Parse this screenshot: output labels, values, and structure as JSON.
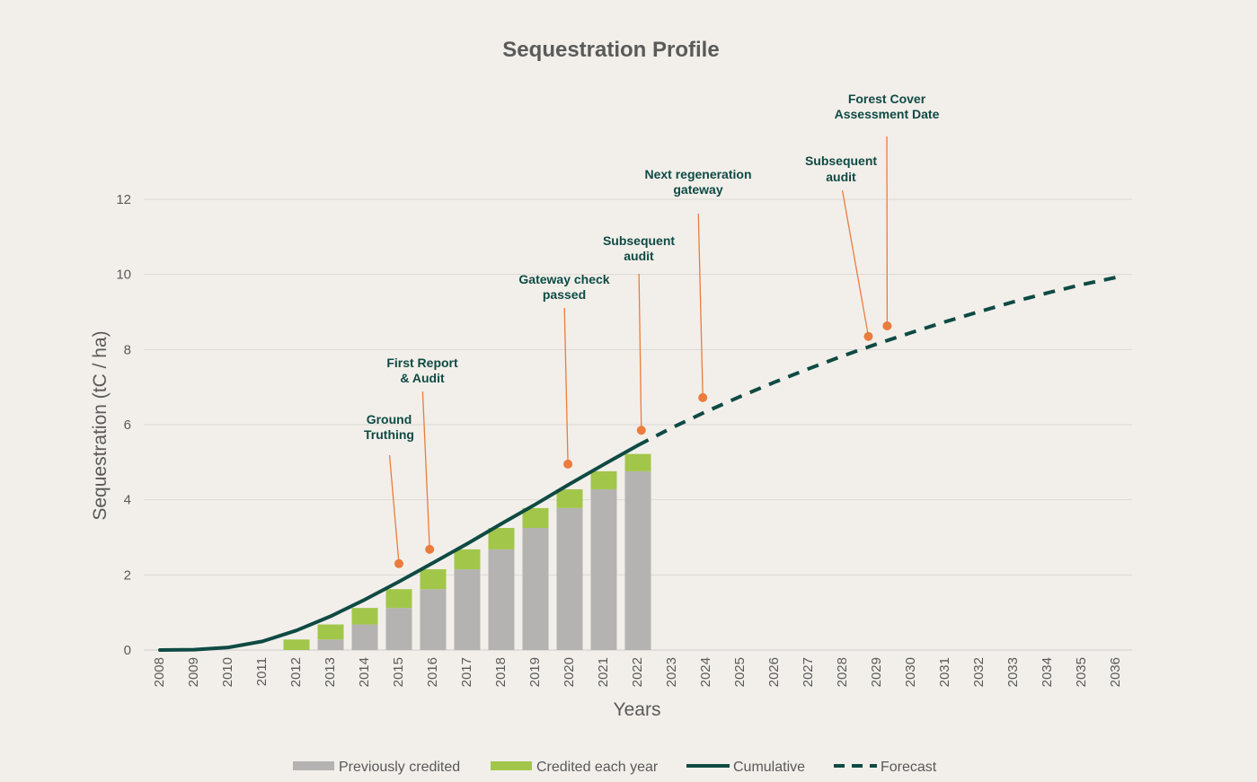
{
  "chart_data": {
    "type": "bar",
    "title": "Sequestration Profile",
    "xlabel": "Years",
    "ylabel": "Sequestration (tC / ha)",
    "ylim": [
      0,
      14
    ],
    "yticks": [
      0,
      2,
      4,
      6,
      8,
      10,
      12
    ],
    "grid": true,
    "legend_position": "bottom",
    "categories": [
      "2008",
      "2009",
      "2010",
      "2011",
      "2012",
      "2013",
      "2014",
      "2015",
      "2016",
      "2017",
      "2018",
      "2019",
      "2020",
      "2021",
      "2022",
      "2023",
      "2024",
      "2025",
      "2026",
      "2027",
      "2028",
      "2029",
      "2030",
      "2031",
      "2032",
      "2033",
      "2034",
      "2035",
      "2036"
    ],
    "series": [
      {
        "name": "Previously credited",
        "type": "bar-stacked",
        "color": "#b4b3b1",
        "values": [
          0,
          0,
          0,
          0,
          0,
          0.28,
          0.68,
          1.12,
          1.62,
          2.15,
          2.68,
          3.25,
          3.78,
          4.28,
          4.76,
          null,
          null,
          null,
          null,
          null,
          null,
          null,
          null,
          null,
          null,
          null,
          null,
          null,
          null
        ]
      },
      {
        "name": "Credited each year",
        "type": "bar-stacked",
        "color": "#a2c64a",
        "values": [
          0,
          0,
          0,
          0,
          0.28,
          0.4,
          0.44,
          0.5,
          0.53,
          0.53,
          0.57,
          0.53,
          0.5,
          0.48,
          0.46,
          null,
          null,
          null,
          null,
          null,
          null,
          null,
          null,
          null,
          null,
          null,
          null,
          null,
          null
        ]
      },
      {
        "name": "Cumulative",
        "type": "line",
        "color": "#0f4a44",
        "values": [
          0,
          0.01,
          0.07,
          0.23,
          0.52,
          0.9,
          1.34,
          1.82,
          2.32,
          2.83,
          3.36,
          3.88,
          4.42,
          4.94,
          5.45,
          null,
          null,
          null,
          null,
          null,
          null,
          null,
          null,
          null,
          null,
          null,
          null,
          null,
          null
        ]
      },
      {
        "name": "Forecast",
        "type": "line-dashed",
        "color": "#0f4a44",
        "values": [
          null,
          null,
          null,
          null,
          null,
          null,
          null,
          null,
          null,
          null,
          null,
          null,
          null,
          null,
          5.45,
          5.92,
          6.35,
          6.75,
          7.13,
          7.49,
          7.83,
          8.15,
          8.45,
          8.74,
          9.01,
          9.27,
          9.51,
          9.73,
          9.92
        ]
      }
    ],
    "annotations": [
      {
        "text": [
          "Ground",
          "Truthing"
        ],
        "x": 2015.0,
        "y": 2.3
      },
      {
        "text": [
          "First Report",
          "& Audit"
        ],
        "x": 2015.9,
        "y": 2.68
      },
      {
        "text": [
          "Gateway check",
          "passed"
        ],
        "x": 2019.95,
        "y": 4.95
      },
      {
        "text": [
          "Subsequent",
          "audit"
        ],
        "x": 2022.1,
        "y": 5.85
      },
      {
        "text": [
          "Next regeneration",
          "gateway"
        ],
        "x": 2023.9,
        "y": 6.72
      },
      {
        "text": [
          "Subsequent",
          "audit"
        ],
        "x": 2028.75,
        "y": 8.35
      },
      {
        "text": [
          "Forest Cover",
          "Assessment Date"
        ],
        "x": 2029.3,
        "y": 8.63
      }
    ],
    "colors": {
      "background": "#f2efea",
      "annotation_marker": "#ea7c3c",
      "annotation_text": "#0f4a44",
      "grid": "#dcdad6"
    }
  }
}
